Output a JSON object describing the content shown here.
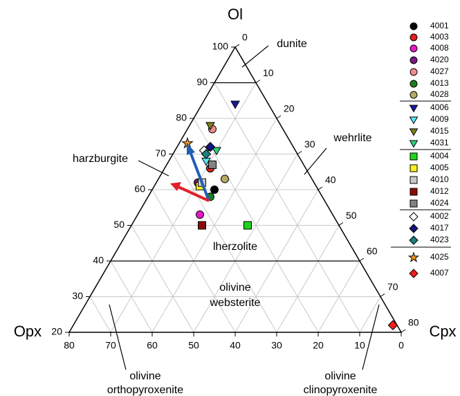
{
  "chart_data": {
    "type": "ternary",
    "axes": {
      "top": "Ol",
      "left": "Opx",
      "right": "Cpx"
    },
    "ollim": [
      20,
      100
    ],
    "ol_ticks": [
      20,
      30,
      40,
      50,
      60,
      70,
      80,
      90,
      100
    ],
    "opx_ticks": [
      80,
      70,
      60,
      50,
      40,
      30,
      20,
      10,
      0
    ],
    "cpx_ticks": [
      0,
      10,
      20,
      30,
      40,
      50,
      60,
      70,
      80
    ],
    "grid": true,
    "field_labels": [
      [
        "dunite"
      ],
      [
        "wehrlite"
      ],
      [
        "harzburgite"
      ],
      [
        "lherzolite"
      ],
      [
        "olivine",
        "websterite"
      ],
      [
        "olivine",
        "orthopyroxenite"
      ],
      [
        "olivine",
        "clinopyroxenite"
      ]
    ],
    "series": [
      {
        "name": "4001",
        "color": "#000000",
        "marker": "circle",
        "ol": 60,
        "opx": 25,
        "cpx": 15
      },
      {
        "name": "4003",
        "color": "#e41e1e",
        "marker": "circle",
        "ol": 66,
        "opx": 23,
        "cpx": 11
      },
      {
        "name": "4008",
        "color": "#e619c8",
        "marker": "circle",
        "ol": 53,
        "opx": 32,
        "cpx": 15
      },
      {
        "name": "4020",
        "color": "#7a1a82",
        "marker": "circle",
        "ol": 62,
        "opx": 28,
        "cpx": 10
      },
      {
        "name": "4027",
        "color": "#f08c8c",
        "marker": "circle",
        "ol": 77,
        "opx": 17,
        "cpx": 6
      },
      {
        "name": "4013",
        "color": "#1e7d1e",
        "marker": "circle",
        "ol": 58,
        "opx": 27,
        "cpx": 15
      },
      {
        "name": "4028",
        "color": "#b4aa64",
        "marker": "circle",
        "ol": 63,
        "opx": 21,
        "cpx": 16
      },
      {
        "name": "4006",
        "color": "#1a1aa0",
        "marker": "triangle",
        "ol": 84,
        "opx": 8,
        "cpx": 8
      },
      {
        "name": "4009",
        "color": "#5ae6f0",
        "marker": "triangle",
        "ol": 68,
        "opx": 23,
        "cpx": 9
      },
      {
        "name": "4015",
        "color": "#7d7d1e",
        "marker": "triangle",
        "ol": 78,
        "opx": 17,
        "cpx": 5
      },
      {
        "name": "4031",
        "color": "#2ad27d",
        "marker": "triangle",
        "ol": 71,
        "opx": 19,
        "cpx": 10
      },
      {
        "name": "4004",
        "color": "#1ed21e",
        "marker": "square",
        "ol": 50,
        "opx": 22,
        "cpx": 28
      },
      {
        "name": "4005",
        "color": "#f5f01e",
        "marker": "square",
        "ol": 61,
        "opx": 28,
        "cpx": 11
      },
      {
        "name": "4010",
        "color": "#c8c8c8",
        "marker": "square",
        "ol": 62,
        "opx": 27,
        "cpx": 11
      },
      {
        "name": "4012",
        "color": "#8c0a0a",
        "marker": "square",
        "ol": 50,
        "opx": 33,
        "cpx": 17
      },
      {
        "name": "4024",
        "color": "#828282",
        "marker": "square",
        "ol": 67,
        "opx": 22,
        "cpx": 11
      },
      {
        "name": "4002",
        "color": "#ffffff",
        "marker": "diamond",
        "ol": 71,
        "opx": 22,
        "cpx": 7
      },
      {
        "name": "4017",
        "color": "#14147d",
        "marker": "diamond",
        "ol": 72,
        "opx": 20,
        "cpx": 8
      },
      {
        "name": "4023",
        "color": "#1e7d7d",
        "marker": "diamond",
        "ol": 70,
        "opx": 22,
        "cpx": 8
      },
      {
        "name": "4025",
        "color": "#f5961e",
        "marker": "star",
        "ol": 73,
        "opx": 25,
        "cpx": 2
      },
      {
        "name": "4007",
        "color": "#f01e1e",
        "marker": "diamond",
        "ol": 22,
        "opx": 1,
        "cpx": 77
      }
    ]
  }
}
